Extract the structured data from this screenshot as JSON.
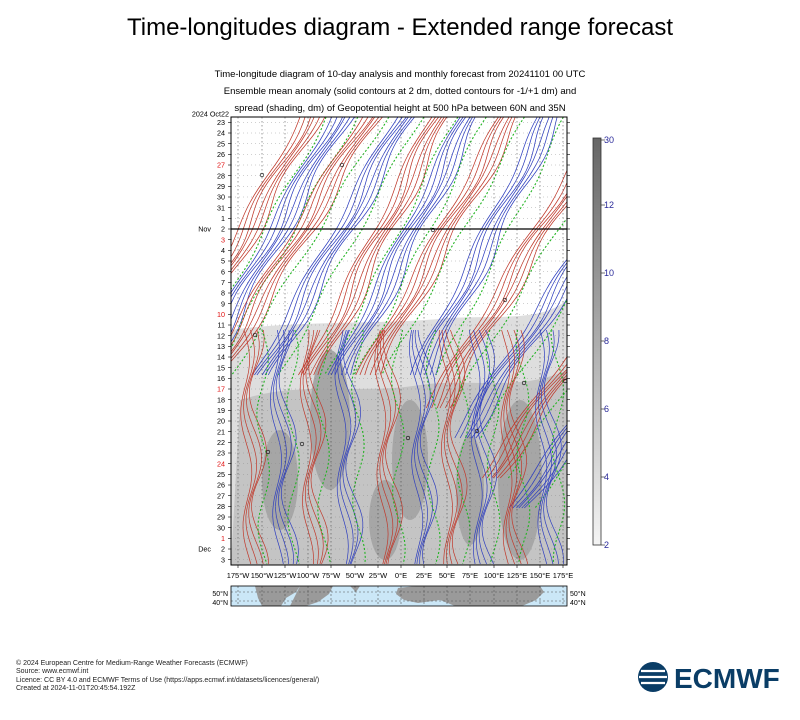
{
  "page": {
    "title": "Time-longitudes diagram - Extended range forecast",
    "subtitle": [
      "Time-longitude diagram of 10-day analysis and monthly forecast from 20241101 00 UTC",
      "Ensemble mean anomaly (solid contours at 2 dm, dotted contours for -1/+1 dm) and",
      "spread (shading, dm) of Geopotential height at 500 hPa between 60N and 35N"
    ],
    "footer": [
      "© 2024 European Centre for Medium-Range Weather Forecasts (ECMWF)",
      "Source: www.ecmwf.int",
      "Licence: CC BY 4.0 and ECMWF Terms of Use (https://apps.ecmwf.int/datasets/licences/general/)",
      "Created at 2024-11-01T20:45:54.192Z"
    ],
    "logo_text": "ECMWF",
    "colors": {
      "positive_anomaly": "#c0392b",
      "negative_anomaly": "#2f3fbf",
      "zero_dotted": "#22b422",
      "weekend_label": "#e01010",
      "scale_label": "#2a2a9a",
      "ocean_map": "#cbe7f7",
      "land_map": "#9a9a9a"
    }
  },
  "chart_data": {
    "type": "heatmap",
    "x": {
      "tick_labels": [
        "175°W",
        "150°W",
        "125°W",
        "100°W",
        "75°W",
        "50°W",
        "25°W",
        "0°E",
        "25°E",
        "50°E",
        "75°E",
        "100°E",
        "125°E",
        "150°E",
        "175°E"
      ],
      "range": [
        -180,
        180
      ]
    },
    "y": {
      "day_labels": [
        "23",
        "24",
        "25",
        "26",
        "27",
        "28",
        "29",
        "30",
        "31",
        "1",
        "2",
        "3",
        "4",
        "5",
        "6",
        "7",
        "8",
        "9",
        "10",
        "11",
        "12",
        "13",
        "14",
        "15",
        "16",
        "17",
        "18",
        "19",
        "20",
        "21",
        "22",
        "23",
        "24",
        "25",
        "26",
        "27",
        "28",
        "29",
        "30",
        "1",
        "2",
        "3"
      ],
      "red_labels": [
        "27",
        "3",
        "10",
        "17",
        "24",
        "1"
      ],
      "month_labels": [
        {
          "text": "2024 Oct22",
          "index": 0
        },
        {
          "text": "Nov",
          "index": 10
        },
        {
          "text": "Dec",
          "index": 40
        }
      ],
      "analysis_end_index": 10
    },
    "spread_colorbar": {
      "ticks": [
        "2",
        "4",
        "6",
        "8",
        "10",
        "12",
        "30"
      ]
    },
    "inset_map": {
      "lat_labels": [
        "50°N",
        "40°N"
      ]
    }
  }
}
